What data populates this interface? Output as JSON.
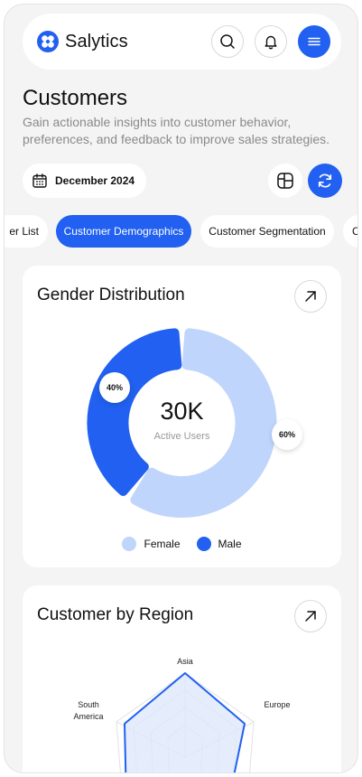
{
  "app": {
    "brand": "Salytics",
    "colors": {
      "primary": "#2160f0",
      "female": "#bfd5fb",
      "male": "#2160f0"
    },
    "icons": {
      "search": "search-icon",
      "notification": "bell-icon",
      "menu": "menu-icon"
    }
  },
  "page": {
    "title": "Customers",
    "subtitle": "Gain actionable insights into customer behavior, preferences, and feedback to improve sales strategies."
  },
  "toolbar": {
    "date_label": "December 2024",
    "layout_icon": "layout-grid-icon",
    "refresh_icon": "refresh-icon"
  },
  "tabs": [
    {
      "label": "er List",
      "active": false
    },
    {
      "label": "Customer Demographics",
      "active": true
    },
    {
      "label": "Customer Segmentation",
      "active": false
    },
    {
      "label": "C",
      "active": false
    }
  ],
  "gender_card": {
    "title": "Gender Distribution",
    "center_value": "30K",
    "center_label": "Active Users",
    "chart_data": {
      "type": "pie",
      "categories": [
        "Female",
        "Male"
      ],
      "values": [
        60,
        40
      ],
      "labels": [
        "60%",
        "40%"
      ],
      "legend_position": "bottom"
    },
    "legend": [
      {
        "label": "Female",
        "color": "#bfd5fb"
      },
      {
        "label": "Male",
        "color": "#2160f0"
      }
    ]
  },
  "region_card": {
    "title": "Customer by Region",
    "chart_data": {
      "type": "radar",
      "categories": [
        "Asia",
        "Europe",
        "South America"
      ],
      "labels": [
        "Asia",
        "Europe",
        "South",
        "America"
      ]
    }
  }
}
